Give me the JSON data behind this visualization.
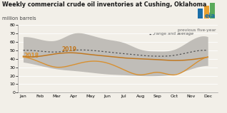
{
  "title": "Weekly commercial crude oil inventories at Cushing, Oklahoma",
  "ylabel": "million barrels",
  "ylim": [
    0,
    80
  ],
  "yticks": [
    0,
    10,
    20,
    30,
    40,
    50,
    60,
    70,
    80
  ],
  "months": [
    "Jan",
    "Feb",
    "Mar",
    "Apr",
    "May",
    "Jun",
    "Jul",
    "Aug",
    "Sep",
    "Oct",
    "Nov",
    "Dec"
  ],
  "background_color": "#f2efe8",
  "band_color": "#c0bdb8",
  "avg_color": "#555555",
  "line_2019_color": "#c07820",
  "line_2018_color": "#d89030",
  "band_upper": [
    66,
    63,
    62,
    70,
    68,
    63,
    59,
    51,
    49,
    51,
    62,
    66
  ],
  "band_lower": [
    36,
    32,
    28,
    26,
    24,
    22,
    21,
    20,
    20,
    22,
    28,
    32
  ],
  "avg_line": [
    50,
    49,
    48,
    50,
    50,
    48,
    46,
    44,
    43,
    44,
    48,
    50
  ],
  "line_2019": [
    43,
    43,
    46,
    47,
    45,
    43,
    41,
    40,
    39,
    38,
    39,
    42
  ],
  "line_2018": [
    42,
    36,
    30,
    33,
    37,
    35,
    27,
    21,
    24,
    21,
    31,
    42
  ],
  "label_2019": "2019",
  "label_2018": "2018",
  "legend_text_1": "previous five-year",
  "legend_text_2": "range and ",
  "legend_text_avg": "average",
  "eia_logo_color": "#1a6ea8",
  "title_fontsize": 5.8,
  "ylabel_fontsize": 4.8,
  "tick_fontsize": 4.5,
  "legend_fontsize": 4.2,
  "label_fontsize": 5.5
}
